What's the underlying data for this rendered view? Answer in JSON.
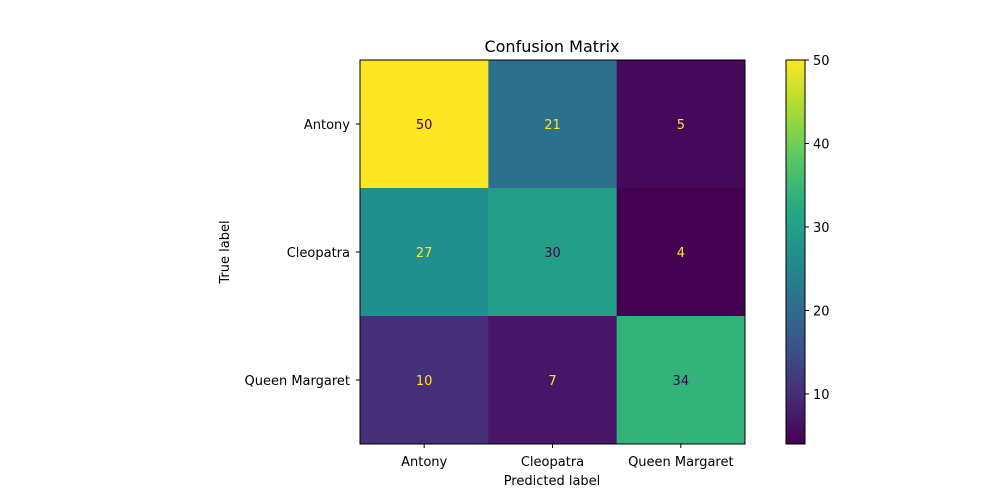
{
  "chart_data": {
    "type": "heatmap",
    "title": "Confusion Matrix",
    "xlabel": "Predicted label",
    "ylabel": "True label",
    "x_categories": [
      "Antony",
      "Cleopatra",
      "Queen Margaret"
    ],
    "y_categories": [
      "Antony",
      "Cleopatra",
      "Queen Margaret"
    ],
    "values": [
      [
        50,
        21,
        5
      ],
      [
        27,
        30,
        4
      ],
      [
        10,
        7,
        34
      ]
    ],
    "colormap": "viridis",
    "color_range": [
      4,
      50
    ],
    "colorbar_ticks": [
      10,
      20,
      30,
      40,
      50
    ],
    "label_colors": {
      "on_dark": "#fde725",
      "on_light": "#440154"
    },
    "grid": false
  }
}
